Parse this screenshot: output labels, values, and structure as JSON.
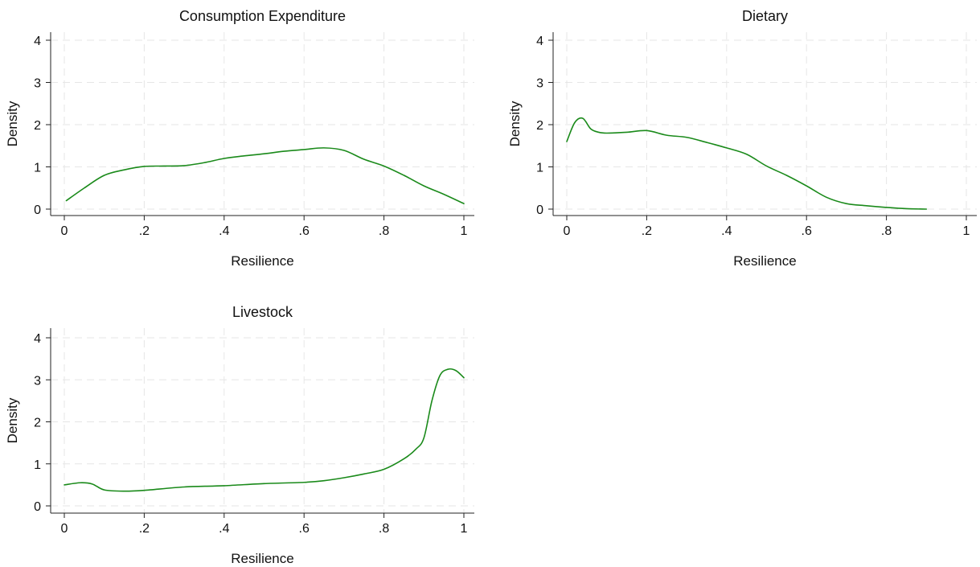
{
  "figure": {
    "line_color": "#1a8a1a",
    "grid": true
  },
  "chart_data": [
    {
      "type": "line",
      "title": "Consumption Expenditure",
      "xlabel": "Resilience",
      "ylabel": "Density",
      "xlim": [
        0,
        1
      ],
      "ylim": [
        0,
        4
      ],
      "xticks": [
        {
          "v": 0,
          "label": "0"
        },
        {
          "v": 0.2,
          "label": ".2"
        },
        {
          "v": 0.4,
          "label": ".4"
        },
        {
          "v": 0.6,
          "label": ".6"
        },
        {
          "v": 0.8,
          "label": ".8"
        },
        {
          "v": 1,
          "label": "1"
        }
      ],
      "yticks": [
        {
          "v": 0,
          "label": "0"
        },
        {
          "v": 1,
          "label": "1"
        },
        {
          "v": 2,
          "label": "2"
        },
        {
          "v": 3,
          "label": "3"
        },
        {
          "v": 4,
          "label": "4"
        }
      ],
      "series": [
        {
          "x": [
            0.005,
            0.05,
            0.1,
            0.15,
            0.2,
            0.25,
            0.3,
            0.35,
            0.4,
            0.45,
            0.5,
            0.55,
            0.6,
            0.65,
            0.7,
            0.75,
            0.8,
            0.85,
            0.9,
            0.95,
            1.0
          ],
          "y": [
            0.2,
            0.5,
            0.8,
            0.93,
            1.01,
            1.02,
            1.03,
            1.1,
            1.2,
            1.26,
            1.31,
            1.37,
            1.41,
            1.45,
            1.39,
            1.18,
            1.02,
            0.8,
            0.55,
            0.35,
            0.13
          ]
        }
      ]
    },
    {
      "type": "line",
      "title": "Dietary",
      "xlabel": "Resilience",
      "ylabel": "Density",
      "xlim": [
        0,
        1
      ],
      "ylim": [
        0,
        4
      ],
      "xticks": [
        {
          "v": 0,
          "label": "0"
        },
        {
          "v": 0.2,
          "label": ".2"
        },
        {
          "v": 0.4,
          "label": ".4"
        },
        {
          "v": 0.6,
          "label": ".6"
        },
        {
          "v": 0.8,
          "label": ".8"
        },
        {
          "v": 1,
          "label": "1"
        }
      ],
      "yticks": [
        {
          "v": 0,
          "label": "0"
        },
        {
          "v": 1,
          "label": "1"
        },
        {
          "v": 2,
          "label": "2"
        },
        {
          "v": 3,
          "label": "3"
        },
        {
          "v": 4,
          "label": "4"
        }
      ],
      "series": [
        {
          "x": [
            0.0,
            0.02,
            0.04,
            0.06,
            0.08,
            0.1,
            0.15,
            0.2,
            0.25,
            0.3,
            0.35,
            0.4,
            0.45,
            0.5,
            0.55,
            0.6,
            0.65,
            0.7,
            0.75,
            0.8,
            0.85,
            0.9
          ],
          "y": [
            1.6,
            2.05,
            2.15,
            1.9,
            1.82,
            1.8,
            1.82,
            1.86,
            1.75,
            1.7,
            1.58,
            1.45,
            1.3,
            1.02,
            0.8,
            0.55,
            0.28,
            0.13,
            0.08,
            0.04,
            0.01,
            0.0
          ]
        }
      ]
    },
    {
      "type": "line",
      "title": "Livestock",
      "xlabel": "Resilience",
      "ylabel": "Density",
      "xlim": [
        0,
        1
      ],
      "ylim": [
        0,
        4
      ],
      "xticks": [
        {
          "v": 0,
          "label": "0"
        },
        {
          "v": 0.2,
          "label": ".2"
        },
        {
          "v": 0.4,
          "label": ".4"
        },
        {
          "v": 0.6,
          "label": ".6"
        },
        {
          "v": 0.8,
          "label": ".8"
        },
        {
          "v": 1,
          "label": "1"
        }
      ],
      "yticks": [
        {
          "v": 0,
          "label": "0"
        },
        {
          "v": 1,
          "label": "1"
        },
        {
          "v": 2,
          "label": "2"
        },
        {
          "v": 3,
          "label": "3"
        },
        {
          "v": 4,
          "label": "4"
        }
      ],
      "series": [
        {
          "x": [
            0.0,
            0.04,
            0.07,
            0.1,
            0.15,
            0.2,
            0.3,
            0.4,
            0.5,
            0.6,
            0.65,
            0.7,
            0.75,
            0.8,
            0.85,
            0.88,
            0.9,
            0.92,
            0.94,
            0.96,
            0.98,
            1.0
          ],
          "y": [
            0.5,
            0.55,
            0.52,
            0.38,
            0.35,
            0.37,
            0.45,
            0.48,
            0.53,
            0.56,
            0.6,
            0.67,
            0.76,
            0.87,
            1.12,
            1.35,
            1.62,
            2.5,
            3.1,
            3.25,
            3.22,
            3.05
          ]
        }
      ]
    }
  ]
}
